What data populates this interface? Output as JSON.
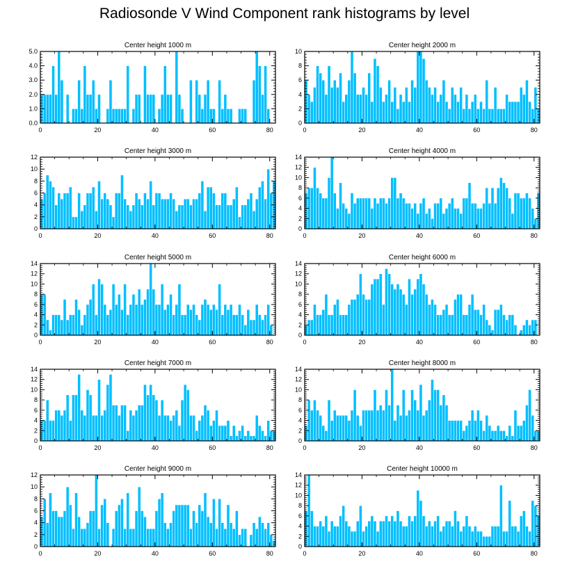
{
  "title": "Radiosonde V Wind Component rank histograms by level",
  "colors": {
    "bar": "#00bfff",
    "bar_edge": "#ffffff",
    "axis": "#000000"
  },
  "chart_data": [
    {
      "type": "bar",
      "title": "Center height 1000 m",
      "xlim": [
        0,
        82
      ],
      "ylim": [
        0,
        5
      ],
      "xticks": [
        0,
        20,
        40,
        60,
        80
      ],
      "yticks": [
        0,
        1,
        2,
        3,
        4,
        5
      ],
      "ytick_labels": [
        "0.0",
        "1.0",
        "2.0",
        "3.0",
        "4.0",
        "5.0"
      ],
      "values": [
        2,
        2,
        2,
        2,
        4,
        2,
        5,
        3,
        0,
        2,
        0,
        1,
        1,
        3,
        1,
        4,
        2,
        2,
        3,
        1,
        2,
        0,
        0,
        1,
        3,
        1,
        1,
        1,
        1,
        1,
        4,
        0,
        1,
        2,
        2,
        0,
        4,
        2,
        2,
        2,
        0,
        1,
        2,
        4,
        2,
        2,
        0,
        5,
        2,
        1,
        0,
        0,
        3,
        0,
        3,
        2,
        1,
        2,
        3,
        1,
        1,
        0,
        3,
        1,
        2,
        1,
        1,
        0,
        0,
        1,
        1,
        1,
        0,
        0,
        3,
        5,
        4,
        2,
        4,
        1,
        0,
        0
      ]
    },
    {
      "type": "bar",
      "title": "Center height 2000 m",
      "xlim": [
        0,
        82
      ],
      "ylim": [
        0,
        10
      ],
      "xticks": [
        0,
        20,
        40,
        60,
        80
      ],
      "yticks": [
        0,
        2,
        4,
        6,
        8,
        10
      ],
      "ytick_labels": [
        "0",
        "2",
        "4",
        "6",
        "8",
        "10"
      ],
      "values": [
        6,
        4,
        3,
        5,
        8,
        7,
        6,
        4,
        8,
        5,
        6,
        5,
        7,
        3,
        4,
        6,
        10,
        7,
        4,
        4,
        5,
        4,
        7,
        3,
        9,
        8,
        5,
        3,
        4,
        6,
        3,
        5,
        2,
        4,
        3,
        5,
        3,
        6,
        5,
        10,
        10,
        9,
        6,
        5,
        4,
        5,
        3,
        4,
        6,
        3,
        2,
        5,
        4,
        3,
        5,
        2,
        4,
        2,
        3,
        4,
        2,
        3,
        2,
        6,
        2,
        2,
        5,
        2,
        2,
        2,
        4,
        3,
        3,
        3,
        3,
        5,
        4,
        6,
        3,
        2,
        5,
        2
      ]
    },
    {
      "type": "bar",
      "title": "Center height 3000 m",
      "xlim": [
        0,
        82
      ],
      "ylim": [
        0,
        12
      ],
      "xticks": [
        0,
        20,
        40,
        60,
        80
      ],
      "yticks": [
        0,
        2,
        4,
        6,
        8,
        10,
        12
      ],
      "ytick_labels": [
        "0",
        "2",
        "4",
        "6",
        "8",
        "10",
        "12"
      ],
      "values": [
        5,
        6,
        9,
        8,
        7,
        4,
        6,
        5,
        6,
        6,
        7,
        2,
        2,
        6,
        3,
        4,
        6,
        6,
        7,
        3,
        8,
        5,
        6,
        5,
        4,
        2,
        6,
        6,
        9,
        5,
        4,
        3,
        4,
        6,
        5,
        4,
        6,
        5,
        8,
        4,
        6,
        6,
        5,
        5,
        5,
        6,
        5,
        3,
        4,
        4,
        5,
        5,
        4,
        5,
        5,
        6,
        8,
        3,
        7,
        7,
        6,
        4,
        4,
        6,
        6,
        4,
        4,
        5,
        7,
        2,
        4,
        4,
        5,
        6,
        3,
        5,
        7,
        8,
        5,
        10,
        6,
        8
      ]
    },
    {
      "type": "bar",
      "title": "Center height 4000 m",
      "xlim": [
        0,
        82
      ],
      "ylim": [
        0,
        14
      ],
      "xticks": [
        0,
        20,
        40,
        60,
        80
      ],
      "yticks": [
        0,
        2,
        4,
        6,
        8,
        10,
        12,
        14
      ],
      "ytick_labels": [
        "0",
        "2",
        "4",
        "6",
        "8",
        "10",
        "12",
        "14"
      ],
      "values": [
        7,
        8,
        8,
        12,
        8,
        7,
        6,
        6,
        10,
        14,
        7,
        4,
        9,
        5,
        4,
        3,
        7,
        5,
        6,
        6,
        6,
        6,
        6,
        4,
        6,
        5,
        6,
        6,
        5,
        6,
        10,
        10,
        6,
        7,
        6,
        5,
        5,
        4,
        5,
        3,
        5,
        6,
        3,
        4,
        2,
        5,
        5,
        6,
        3,
        4,
        5,
        6,
        4,
        4,
        3,
        6,
        6,
        9,
        5,
        5,
        4,
        4,
        5,
        8,
        5,
        8,
        5,
        8,
        10,
        9,
        8,
        6,
        3,
        7,
        7,
        6,
        6,
        7,
        6,
        4,
        2,
        7
      ]
    },
    {
      "type": "bar",
      "title": "Center height 5000 m",
      "xlim": [
        0,
        82
      ],
      "ylim": [
        0,
        14
      ],
      "xticks": [
        0,
        20,
        40,
        60,
        80
      ],
      "yticks": [
        0,
        2,
        4,
        6,
        8,
        10,
        12,
        14
      ],
      "ytick_labels": [
        "0",
        "2",
        "4",
        "6",
        "8",
        "10",
        "12",
        "14"
      ],
      "values": [
        8,
        8,
        3,
        1,
        4,
        4,
        4,
        3,
        7,
        3,
        4,
        4,
        7,
        5,
        2,
        4,
        6,
        7,
        10,
        4,
        11,
        10,
        6,
        4,
        5,
        10,
        6,
        8,
        5,
        10,
        4,
        6,
        8,
        6,
        9,
        6,
        7,
        9,
        14,
        9,
        6,
        6,
        10,
        5,
        6,
        8,
        4,
        6,
        10,
        4,
        4,
        6,
        5,
        6,
        4,
        3,
        6,
        7,
        6,
        5,
        6,
        5,
        10,
        4,
        6,
        5,
        6,
        4,
        4,
        6,
        4,
        2,
        5,
        3,
        3,
        6,
        4,
        3,
        4,
        6,
        2,
        0
      ]
    },
    {
      "type": "bar",
      "title": "Center height 6000 m",
      "xlim": [
        0,
        82
      ],
      "ylim": [
        0,
        14
      ],
      "xticks": [
        0,
        20,
        40,
        60,
        80
      ],
      "yticks": [
        0,
        2,
        4,
        6,
        8,
        10,
        12,
        14
      ],
      "ytick_labels": [
        "0",
        "2",
        "4",
        "6",
        "8",
        "10",
        "12",
        "14"
      ],
      "values": [
        2,
        3,
        3,
        6,
        4,
        4,
        5,
        8,
        4,
        4,
        6,
        7,
        4,
        4,
        4,
        6,
        7,
        7,
        8,
        12,
        8,
        7,
        7,
        10,
        11,
        11,
        12,
        6,
        13,
        12,
        10,
        9,
        10,
        9,
        8,
        6,
        11,
        8,
        9,
        11,
        12,
        10,
        8,
        6,
        7,
        6,
        4,
        4,
        5,
        6,
        4,
        4,
        7,
        8,
        8,
        4,
        4,
        6,
        8,
        5,
        5,
        4,
        6,
        3,
        2,
        1,
        5,
        5,
        6,
        4,
        3,
        4,
        4,
        2,
        0,
        1,
        2,
        3,
        2,
        3,
        3,
        0
      ]
    },
    {
      "type": "bar",
      "title": "Center height 7000 m",
      "xlim": [
        0,
        82
      ],
      "ylim": [
        0,
        14
      ],
      "xticks": [
        0,
        20,
        40,
        60,
        80
      ],
      "yticks": [
        0,
        2,
        4,
        6,
        8,
        10,
        12,
        14
      ],
      "ytick_labels": [
        "0",
        "2",
        "4",
        "6",
        "8",
        "10",
        "12",
        "14"
      ],
      "values": [
        4,
        4,
        8,
        4,
        4,
        6,
        6,
        5,
        6,
        9,
        4,
        9,
        9,
        13,
        6,
        5,
        10,
        9,
        5,
        5,
        12,
        5,
        6,
        11,
        13,
        7,
        7,
        5,
        7,
        7,
        2,
        6,
        5,
        6,
        7,
        7,
        11,
        9,
        11,
        9,
        8,
        5,
        8,
        5,
        5,
        4,
        5,
        6,
        3,
        8,
        11,
        10,
        5,
        5,
        2,
        4,
        5,
        7,
        6,
        3,
        4,
        6,
        3,
        3,
        3,
        4,
        1,
        3,
        1,
        2,
        3,
        1,
        2,
        1,
        1,
        5,
        3,
        2,
        1,
        4,
        2,
        2
      ]
    },
    {
      "type": "bar",
      "title": "Center height 8000 m",
      "xlim": [
        0,
        82
      ],
      "ylim": [
        0,
        14
      ],
      "xticks": [
        0,
        20,
        40,
        60,
        80
      ],
      "yticks": [
        0,
        2,
        4,
        6,
        8,
        10,
        12,
        14
      ],
      "ytick_labels": [
        "0",
        "2",
        "4",
        "6",
        "8",
        "10",
        "12",
        "14"
      ],
      "values": [
        3,
        8,
        6,
        8,
        6,
        5,
        3,
        2,
        8,
        4,
        6,
        5,
        5,
        5,
        5,
        4,
        6,
        10,
        5,
        3,
        6,
        6,
        6,
        6,
        10,
        6,
        7,
        6,
        10,
        7,
        14,
        4,
        7,
        5,
        10,
        5,
        6,
        10,
        8,
        6,
        11,
        5,
        6,
        8,
        12,
        10,
        10,
        7,
        9,
        7,
        4,
        4,
        4,
        4,
        4,
        2,
        3,
        4,
        6,
        4,
        6,
        4,
        2,
        5,
        3,
        2,
        2,
        3,
        2,
        2,
        1,
        3,
        1,
        6,
        3,
        3,
        4,
        7,
        10,
        5,
        2,
        2
      ]
    },
    {
      "type": "bar",
      "title": "Center height 9000 m",
      "xlim": [
        0,
        82
      ],
      "ylim": [
        0,
        12
      ],
      "xticks": [
        0,
        20,
        40,
        60,
        80
      ],
      "yticks": [
        0,
        2,
        4,
        6,
        8,
        10,
        12
      ],
      "ytick_labels": [
        "0",
        "2",
        "4",
        "6",
        "8",
        "10",
        "12"
      ],
      "values": [
        5,
        8,
        4,
        9,
        6,
        6,
        5,
        5,
        6,
        10,
        7,
        3,
        9,
        5,
        3,
        3,
        4,
        6,
        6,
        12,
        3,
        7,
        8,
        4,
        0,
        3,
        6,
        7,
        8,
        3,
        9,
        3,
        3,
        6,
        10,
        6,
        5,
        3,
        3,
        3,
        6,
        8,
        9,
        4,
        3,
        4,
        6,
        7,
        7,
        7,
        7,
        7,
        3,
        6,
        4,
        7,
        6,
        9,
        5,
        4,
        8,
        3,
        8,
        4,
        3,
        7,
        4,
        3,
        6,
        2,
        3,
        3,
        0,
        2,
        4,
        3,
        5,
        4,
        3,
        4,
        2,
        1
      ]
    },
    {
      "type": "bar",
      "title": "Center height 10000 m",
      "xlim": [
        0,
        82
      ],
      "ylim": [
        0,
        14
      ],
      "xticks": [
        0,
        20,
        40,
        60,
        80
      ],
      "yticks": [
        0,
        2,
        4,
        6,
        8,
        10,
        12,
        14
      ],
      "ytick_labels": [
        "0",
        "2",
        "4",
        "6",
        "8",
        "10",
        "12",
        "14"
      ],
      "values": [
        7,
        14,
        7,
        4,
        4,
        5,
        4,
        6,
        3,
        5,
        4,
        4,
        6,
        8,
        5,
        4,
        3,
        3,
        5,
        8,
        3,
        4,
        5,
        6,
        5,
        3,
        5,
        5,
        6,
        5,
        6,
        5,
        7,
        5,
        4,
        4,
        6,
        5,
        6,
        11,
        9,
        6,
        4,
        5,
        4,
        5,
        6,
        3,
        4,
        5,
        5,
        4,
        7,
        5,
        3,
        4,
        6,
        4,
        3,
        4,
        3,
        3,
        2,
        2,
        2,
        4,
        4,
        4,
        12,
        3,
        3,
        9,
        4,
        4,
        3,
        6,
        7,
        4,
        3,
        9,
        8,
        6
      ]
    }
  ]
}
